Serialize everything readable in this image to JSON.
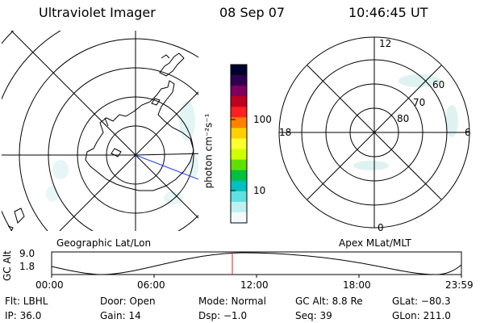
{
  "header": {
    "instrument": "Ultraviolet Imager",
    "date": "08 Sep 07",
    "time": "10:46:45 UT"
  },
  "colorbar": {
    "unit_label": "photon cm⁻²s⁻¹",
    "ticks": [
      "100",
      "10"
    ],
    "colors": [
      "#000030",
      "#300050",
      "#800060",
      "#c00020",
      "#ff2020",
      "#ff8000",
      "#ffd000",
      "#ffff30",
      "#d0ff00",
      "#60e000",
      "#00c040",
      "#00c0c0",
      "#60e0e0",
      "#c0f0f0",
      "#f4fafa"
    ]
  },
  "left_plot": {
    "label": "Geographic Lat/Lon"
  },
  "right_plot": {
    "label": "Apex MLat/MLT",
    "mlt_labels": {
      "top": "12",
      "left": "18",
      "right": "6",
      "bottom": "0"
    },
    "lat_labels": [
      "80",
      "70",
      "60"
    ]
  },
  "altitude_strip": {
    "ylabel": "GC Alt",
    "yticks": [
      "9.0",
      "1.8"
    ],
    "xticks": [
      "00:00",
      "06:00",
      "12:00",
      "18:00",
      "23:59"
    ]
  },
  "footer": {
    "filter": "Flt: LBHL",
    "door": "Door: Open",
    "mode": "Mode: Normal",
    "gc_alt": "GC Alt: 8.8 Re",
    "glat": "GLat: −80.3",
    "ip": "IP: 36.0",
    "gain": "Gain: 14",
    "dsp": "Dsp:  −1.0",
    "seq": "Seq: 39",
    "glon": "GLon: 211.0"
  }
}
